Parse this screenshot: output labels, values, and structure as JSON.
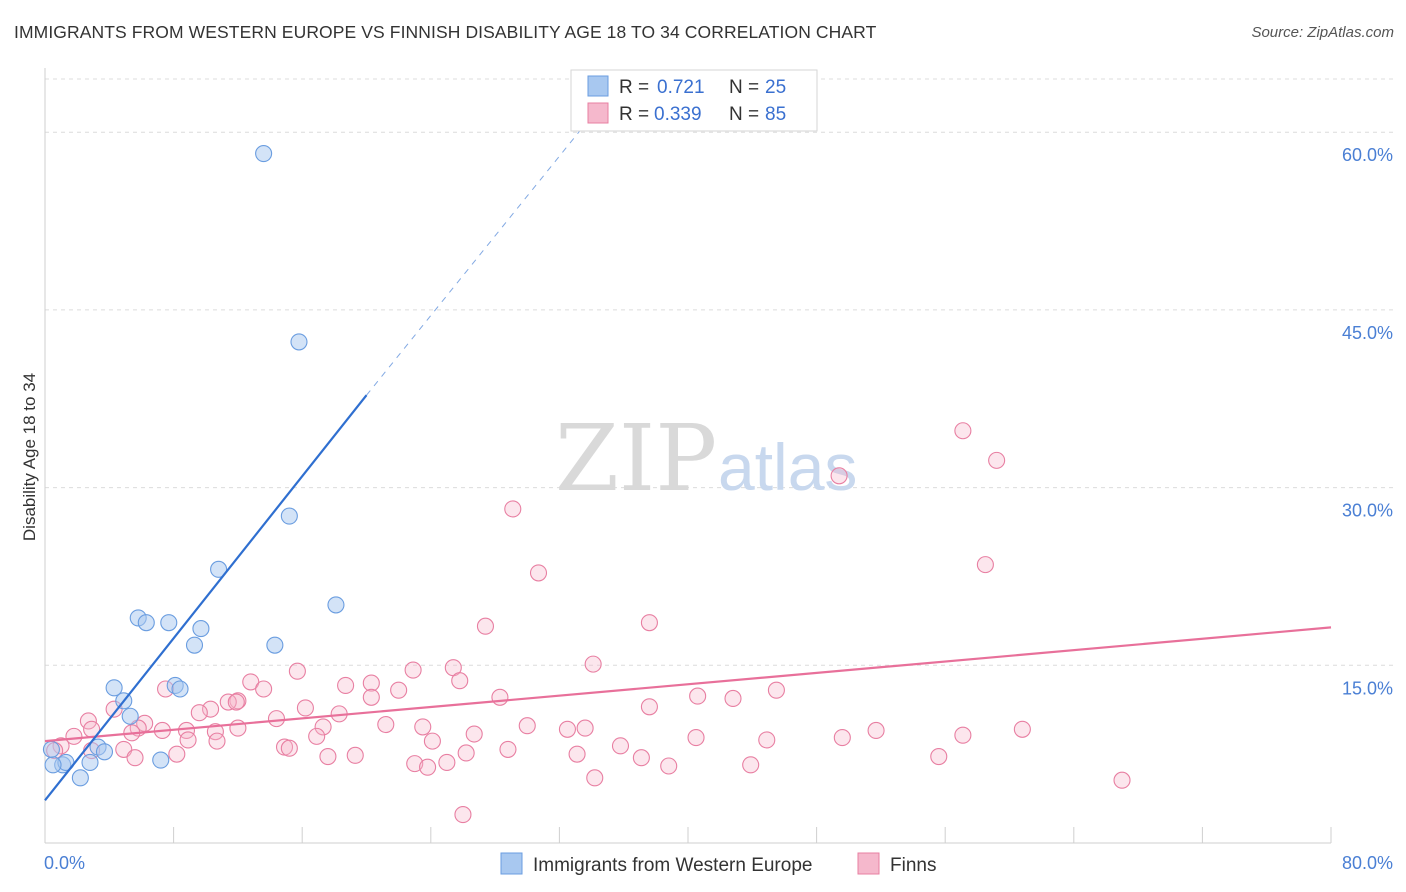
{
  "title": "IMMIGRANTS FROM WESTERN EUROPE VS FINNISH DISABILITY AGE 18 TO 34 CORRELATION CHART",
  "source": "Source: ZipAtlas.com",
  "watermark": {
    "zip": "ZIP",
    "atlas": "atlas"
  },
  "colors": {
    "blue_fill": "#a8c8f0",
    "blue_stroke": "#6a9de0",
    "blue_line": "#2f6fd0",
    "pink_fill": "#f5b8cc",
    "pink_stroke": "#e87fa2",
    "pink_line": "#e8709a",
    "tick_label": "#4a7fd4",
    "grid": "#dcdcdc"
  },
  "chart_data": {
    "type": "scatter",
    "title": "IMMIGRANTS FROM WESTERN EUROPE VS FINNISH DISABILITY AGE 18 TO 34 CORRELATION CHART",
    "xlabel": "",
    "ylabel": "Disability Age 18 to 34",
    "xlim": [
      0,
      80
    ],
    "ylim": [
      0,
      65
    ],
    "x_tick_labels": [
      "0.0%",
      "80.0%"
    ],
    "y_ticks": [
      15,
      30,
      45,
      60
    ],
    "y_tick_labels": [
      "15.0%",
      "30.0%",
      "45.0%",
      "60.0%"
    ],
    "legend": [
      {
        "name": "Immigrants from Western Europe",
        "r_label": "R =",
        "r": "0.721",
        "n_label": "N =",
        "n": "25"
      },
      {
        "name": "Finns",
        "r_label": "R =",
        "r": "0.339",
        "n_label": "N =",
        "n": "85"
      }
    ],
    "series": [
      {
        "name": "Immigrants from Western Europe",
        "color": "blue",
        "points": [
          [
            13.6,
            58.2
          ],
          [
            15.8,
            42.3
          ],
          [
            15.2,
            27.6
          ],
          [
            18.1,
            20.1
          ],
          [
            10.8,
            23.1
          ],
          [
            5.8,
            19.0
          ],
          [
            6.3,
            18.6
          ],
          [
            7.7,
            18.6
          ],
          [
            9.7,
            18.1
          ],
          [
            9.3,
            16.7
          ],
          [
            14.3,
            16.7
          ],
          [
            4.3,
            13.1
          ],
          [
            8.1,
            13.3
          ],
          [
            8.4,
            13.0
          ],
          [
            4.9,
            12.0
          ],
          [
            5.3,
            10.7
          ],
          [
            3.3,
            8.1
          ],
          [
            3.7,
            7.7
          ],
          [
            7.2,
            7.0
          ],
          [
            2.8,
            6.8
          ],
          [
            1.1,
            6.6
          ],
          [
            1.3,
            6.8
          ],
          [
            0.5,
            6.6
          ],
          [
            0.4,
            7.9
          ],
          [
            2.2,
            5.5
          ]
        ],
        "trend": {
          "x": [
            0.0,
            20.0
          ],
          "y": [
            3.6,
            37.8
          ],
          "dashed_to": {
            "x": 33.5,
            "y": 60.5
          }
        }
      },
      {
        "name": "Finns",
        "color": "pink",
        "points": [
          [
            57.1,
            34.8
          ],
          [
            59.2,
            32.3
          ],
          [
            49.4,
            31.0
          ],
          [
            58.5,
            23.5
          ],
          [
            29.1,
            28.2
          ],
          [
            30.7,
            22.8
          ],
          [
            37.6,
            18.6
          ],
          [
            27.4,
            18.3
          ],
          [
            34.1,
            15.1
          ],
          [
            25.4,
            14.8
          ],
          [
            22.9,
            14.6
          ],
          [
            15.7,
            14.5
          ],
          [
            25.8,
            13.7
          ],
          [
            12.8,
            13.6
          ],
          [
            20.3,
            13.5
          ],
          [
            18.7,
            13.3
          ],
          [
            13.6,
            13.0
          ],
          [
            45.5,
            12.9
          ],
          [
            12.0,
            12.0
          ],
          [
            7.5,
            13.0
          ],
          [
            22.0,
            12.9
          ],
          [
            28.3,
            12.3
          ],
          [
            40.6,
            12.4
          ],
          [
            42.8,
            12.2
          ],
          [
            11.4,
            11.9
          ],
          [
            10.3,
            11.3
          ],
          [
            11.9,
            11.9
          ],
          [
            16.2,
            11.4
          ],
          [
            4.3,
            11.3
          ],
          [
            20.3,
            12.3
          ],
          [
            37.6,
            11.5
          ],
          [
            14.4,
            10.5
          ],
          [
            9.6,
            11.0
          ],
          [
            18.3,
            10.9
          ],
          [
            6.2,
            10.1
          ],
          [
            21.2,
            10.0
          ],
          [
            33.6,
            9.7
          ],
          [
            8.8,
            9.5
          ],
          [
            7.3,
            9.5
          ],
          [
            2.7,
            10.3
          ],
          [
            5.8,
            9.7
          ],
          [
            10.6,
            9.4
          ],
          [
            12.0,
            9.7
          ],
          [
            17.3,
            9.8
          ],
          [
            23.5,
            9.8
          ],
          [
            30.0,
            9.9
          ],
          [
            32.5,
            9.6
          ],
          [
            51.7,
            9.5
          ],
          [
            60.8,
            9.6
          ],
          [
            2.9,
            9.6
          ],
          [
            1.8,
            9.0
          ],
          [
            5.4,
            9.3
          ],
          [
            4.9,
            7.9
          ],
          [
            8.9,
            8.7
          ],
          [
            10.7,
            8.6
          ],
          [
            16.9,
            9.0
          ],
          [
            26.7,
            9.2
          ],
          [
            40.5,
            8.9
          ],
          [
            49.6,
            8.9
          ],
          [
            1.0,
            8.2
          ],
          [
            0.6,
            7.8
          ],
          [
            2.9,
            7.8
          ],
          [
            5.6,
            7.2
          ],
          [
            8.2,
            7.5
          ],
          [
            14.9,
            8.1
          ],
          [
            15.2,
            8.0
          ],
          [
            17.6,
            7.3
          ],
          [
            19.3,
            7.4
          ],
          [
            24.1,
            8.6
          ],
          [
            26.2,
            7.6
          ],
          [
            28.8,
            7.9
          ],
          [
            33.1,
            7.5
          ],
          [
            35.8,
            8.2
          ],
          [
            44.9,
            8.7
          ],
          [
            57.1,
            9.1
          ],
          [
            23.0,
            6.7
          ],
          [
            23.8,
            6.4
          ],
          [
            25.0,
            6.8
          ],
          [
            37.1,
            7.2
          ],
          [
            38.8,
            6.5
          ],
          [
            43.9,
            6.6
          ],
          [
            55.6,
            7.3
          ],
          [
            34.2,
            5.5
          ],
          [
            67.0,
            5.3
          ],
          [
            26.0,
            2.4
          ]
        ],
        "trend": {
          "x": [
            0.0,
            80.0
          ],
          "y": [
            8.6,
            18.2
          ]
        }
      }
    ]
  }
}
